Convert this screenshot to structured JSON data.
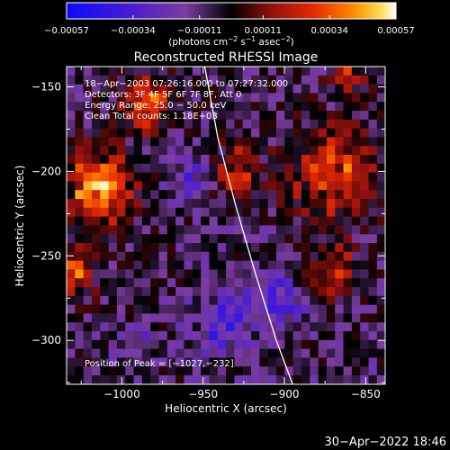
{
  "chart_data": {
    "type": "heatmap",
    "title": "Reconstructed RHESSI Image",
    "xlabel": "Heliocentric X (arcsec)",
    "ylabel": "Heliocentric Y (arcsec)",
    "xlim": [
      -1034,
      -838
    ],
    "ylim": [
      -326,
      -138
    ],
    "x_ticks": [
      -1000,
      -950,
      -900,
      -850
    ],
    "x_tick_labels": [
      "−1000",
      "−950",
      "−900",
      "−850"
    ],
    "y_ticks": [
      -150,
      -200,
      -250,
      -300
    ],
    "y_tick_labels": [
      "−150",
      "−200",
      "−250",
      "−300"
    ],
    "grid": false,
    "colorbar": {
      "range": [
        -0.00057,
        0.00057
      ],
      "ticks": [
        -0.00057,
        -0.00034,
        -0.00011,
        0.00011,
        0.00034,
        0.00057
      ],
      "tick_labels": [
        "−0.00057",
        "−0.00034",
        "−0.00011",
        "0.00011",
        "0.00034",
        "0.00057"
      ],
      "unit_label_parts": [
        "(photons cm",
        "−2",
        " s",
        "−1",
        " asec",
        "−2",
        ")"
      ]
    },
    "annotations": [
      "18−Apr−2003 07:26:16.000 to 07:27:32.000",
      "Detectors: 3F 4F 5F 6F 7F 8F, Att 0",
      "Energy Range: 25.0 − 50.0 keV",
      "Clean    Total counts: 1.18E+03"
    ],
    "peak_label": "Position of Peak = [−1027,−232]",
    "peak_position": [
      -1027,
      -232
    ],
    "limb_arc": {
      "x": [
        -949,
        -941,
        -930,
        -918,
        -905,
        -895
      ],
      "y": [
        -138,
        -180,
        -220,
        -260,
        -300,
        -326
      ]
    },
    "grid_size": [
      38,
      36
    ],
    "cell_size_arcsec": [
      5.16,
      5.22
    ],
    "bright_regions": [
      {
        "x": -1015,
        "y": -210,
        "radius": 22,
        "value": 0.0005
      },
      {
        "x": -985,
        "y": -160,
        "radius": 14,
        "value": 0.00045
      },
      {
        "x": -1030,
        "y": -260,
        "radius": 14,
        "value": 0.00035
      },
      {
        "x": -930,
        "y": -200,
        "radius": 16,
        "value": 0.0003
      },
      {
        "x": -870,
        "y": -200,
        "radius": 26,
        "value": 0.0004
      },
      {
        "x": -860,
        "y": -140,
        "radius": 12,
        "value": 0.0003
      },
      {
        "x": -870,
        "y": -260,
        "radius": 16,
        "value": 0.0003
      },
      {
        "x": -950,
        "y": -290,
        "radius": 14,
        "value": 0.0001
      }
    ],
    "dark_regions": [
      {
        "x": -940,
        "y": -290,
        "radius": 18,
        "value": -0.0003
      },
      {
        "x": -905,
        "y": -275,
        "radius": 16,
        "value": -0.00028
      },
      {
        "x": -955,
        "y": -205,
        "radius": 12,
        "value": -0.00025
      },
      {
        "x": -990,
        "y": -300,
        "radius": 10,
        "value": -0.00015
      }
    ]
  },
  "footer": {
    "timestamp": "30−Apr−2022 18:46"
  }
}
